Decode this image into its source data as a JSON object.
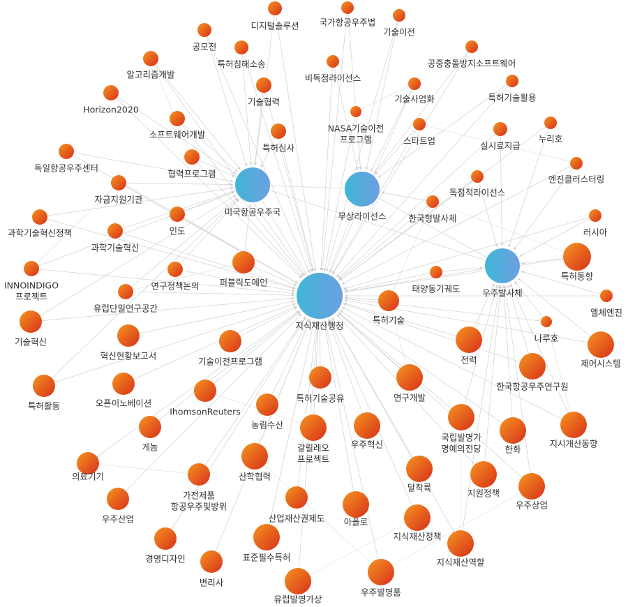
{
  "nodes": [
    {
      "label": "미국항공우주국"
    },
    {
      "label": "무상라이선스"
    },
    {
      "label": "우주발사체"
    },
    {
      "label": "지식재산행정"
    },
    {
      "label": "디지털솔루션"
    },
    {
      "label": "국가항공우주법"
    },
    {
      "label": "기술이전"
    },
    {
      "label": "공모전"
    },
    {
      "label": "특허침해소송"
    },
    {
      "label": "공중충돌방지소프트웨어"
    },
    {
      "label": "비독점라이선스"
    },
    {
      "label": "알고리즘개발"
    },
    {
      "label": "기술협력"
    },
    {
      "label": "기술사업화"
    },
    {
      "label": "특허기술활용"
    },
    {
      "label": "Horizon2020"
    },
    {
      "label": [
        "NASA기술이전",
        "프로그램"
      ]
    },
    {
      "label": "소프트웨어개발"
    },
    {
      "label": "스타트업"
    },
    {
      "label": "실시료지급"
    },
    {
      "label": "누리호"
    },
    {
      "label": "특허심사"
    },
    {
      "label": "독일항공우주센터"
    },
    {
      "label": "협력프로그램"
    },
    {
      "label": "엔진클러스터링"
    },
    {
      "label": "독점적라이선스"
    },
    {
      "label": "자금지원기관"
    },
    {
      "label": "한국형발사체"
    },
    {
      "label": "인도"
    },
    {
      "label": "과학기술혁신정책"
    },
    {
      "label": "러시아"
    },
    {
      "label": "과학기술혁신"
    },
    {
      "label": [
        "INNOINDIGO",
        "프로젝트"
      ]
    },
    {
      "label": "연구정책논의"
    },
    {
      "label": "퍼블릭도메인"
    },
    {
      "label": "태양동기궤도"
    },
    {
      "label": "특허동향"
    },
    {
      "label": "유럽단일연구공간"
    },
    {
      "label": "앨체엔진"
    },
    {
      "label": "특허기술"
    },
    {
      "label": "나루호"
    },
    {
      "label": "기술혁신"
    },
    {
      "label": "혁신현황보고서"
    },
    {
      "label": "전력"
    },
    {
      "label": "제어시스템"
    },
    {
      "label": "기술이전프로그램"
    },
    {
      "label": "한국항공우주연구원"
    },
    {
      "label": "특허기술공유"
    },
    {
      "label": "연구개발"
    },
    {
      "label": "특허활동"
    },
    {
      "label": "오픈이노베이션"
    },
    {
      "label": "IhomsonReuters"
    },
    {
      "label": "농림수산"
    },
    {
      "label": [
        "국립발명가",
        "명예의전당"
      ]
    },
    {
      "label": "한화"
    },
    {
      "label": "지시개산동향"
    },
    {
      "label": "게놈"
    },
    {
      "label": [
        "갈릴레오",
        "프로젝트"
      ]
    },
    {
      "label": "우주혁신"
    },
    {
      "label": "의료기기"
    },
    {
      "label": "달착륙"
    },
    {
      "label": "산학협력"
    },
    {
      "label": [
        "가전제품",
        "항공우주및방위"
      ]
    },
    {
      "label": "지원정책"
    },
    {
      "label": "우주상업"
    },
    {
      "label": "우주산업"
    },
    {
      "label": "산업재산권제도"
    },
    {
      "label": "아폴로"
    },
    {
      "label": "지식재산정책"
    },
    {
      "label": "경영디자인"
    },
    {
      "label": "표준필수특허"
    },
    {
      "label": "지식재산역할"
    },
    {
      "label": "변리사"
    },
    {
      "label": "우주발명품"
    },
    {
      "label": "유럽발명가상"
    }
  ]
}
